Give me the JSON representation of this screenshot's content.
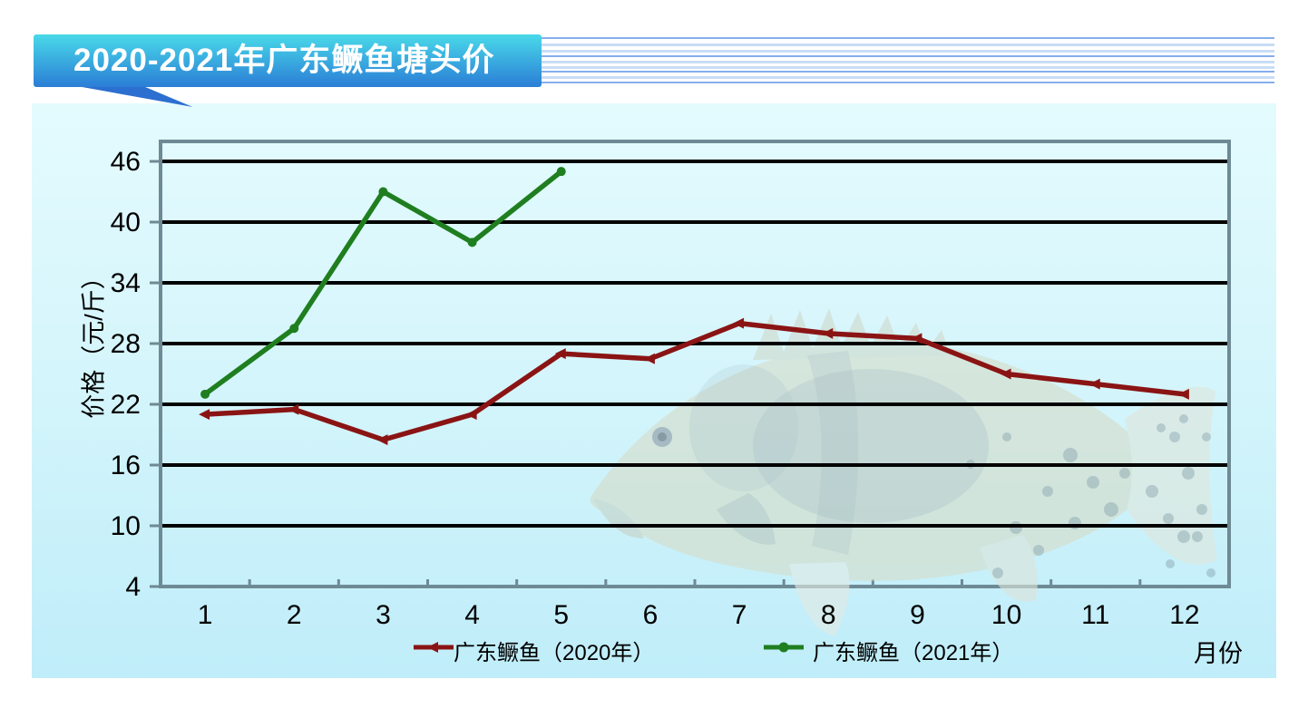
{
  "banner": {
    "title": "2020-2021年广东鳜鱼塘头价"
  },
  "chart_data": {
    "type": "line",
    "title": "2020-2021年广东鳜鱼塘头价",
    "xlabel": "月份",
    "ylabel": "价格（元/斤）",
    "categories": [
      1,
      2,
      3,
      4,
      5,
      6,
      7,
      8,
      9,
      10,
      11,
      12
    ],
    "ylim": [
      4,
      46
    ],
    "yticks": [
      4,
      10,
      16,
      22,
      28,
      34,
      40,
      46
    ],
    "grid": true,
    "legend_position": "bottom",
    "series": [
      {
        "name": "广东鳜鱼（2020年）",
        "color": "#8a1414",
        "marker": "triangle",
        "values": [
          21,
          21.5,
          18.5,
          21,
          27,
          26.5,
          30,
          29,
          28.5,
          25,
          24,
          23
        ]
      },
      {
        "name": "广东鳜鱼（2021年）",
        "color": "#1f7e1f",
        "marker": "circle",
        "values": [
          23,
          29.5,
          43,
          38,
          45
        ]
      }
    ]
  },
  "colors": {
    "page_background": "#ffffff",
    "panel_top": "#e4fbfe",
    "panel_bottom": "#bfedf9",
    "banner_top": "#49d9e9",
    "banner_bottom": "#2b7ed6",
    "banner_tail": "#2b6fd0",
    "frame": "#6e8a94",
    "gridline": "#000000",
    "pinstripe_dark": "#85aeee",
    "pinstripe_light": "#c8ddf6"
  }
}
